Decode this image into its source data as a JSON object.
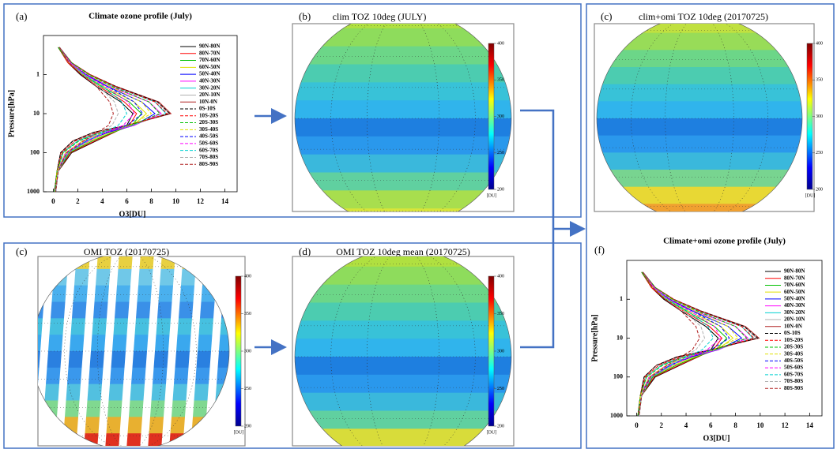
{
  "chart_data": [
    {
      "type": "line",
      "panel_label": "(a)",
      "title": "Climate ozone profile (July)",
      "x_label": "O3[DU]",
      "y_label": "Pressure[hPa]",
      "y": [
        0.2,
        0.5,
        1,
        2,
        5,
        10,
        20,
        30,
        50,
        100,
        300,
        1000
      ],
      "xlim": [
        -0.8,
        15
      ],
      "xticks": [
        0,
        2,
        4,
        6,
        8,
        10,
        12,
        14
      ],
      "ylim": [
        1000,
        0.1
      ],
      "yticks": [
        1,
        10,
        100,
        1000
      ],
      "y_scale": "log",
      "legend": "upper right",
      "series": [
        {
          "name": "90N-80N",
          "color": "#000000",
          "dashed": false,
          "values": [
            0.4,
            1.2,
            2.2,
            3.5,
            5.5,
            6.5,
            6,
            5,
            3.5,
            1.5,
            0.4,
            0.2
          ]
        },
        {
          "name": "80N-70N",
          "color": "#ff0000",
          "dashed": false,
          "values": [
            0.4,
            1.2,
            2.3,
            3.7,
            5.8,
            6.8,
            6.2,
            5,
            3.4,
            1.4,
            0.4,
            0.2
          ]
        },
        {
          "name": "70N-60N",
          "color": "#00c000",
          "dashed": false,
          "values": [
            0.4,
            1.3,
            2.4,
            3.9,
            6.2,
            7.2,
            6.4,
            4.9,
            3.2,
            1.3,
            0.4,
            0.2
          ]
        },
        {
          "name": "60N-50N",
          "color": "#e0e000",
          "dashed": false,
          "values": [
            0.5,
            1.3,
            2.5,
            4.1,
            6.6,
            7.6,
            6.5,
            4.7,
            3,
            1.2,
            0.4,
            0.2
          ]
        },
        {
          "name": "50N-40N",
          "color": "#0000ff",
          "dashed": false,
          "values": [
            0.5,
            1.4,
            2.6,
            4.4,
            7.2,
            8.3,
            6.6,
            4.5,
            2.7,
            1.1,
            0.3,
            0.2
          ]
        },
        {
          "name": "40N-30N",
          "color": "#ff00ff",
          "dashed": false,
          "values": [
            0.5,
            1.4,
            2.7,
            4.6,
            7.8,
            8.8,
            6.6,
            4.2,
            2.4,
            1,
            0.3,
            0.1
          ]
        },
        {
          "name": "30N-20N",
          "color": "#00d0d0",
          "dashed": false,
          "values": [
            0.5,
            1.5,
            2.9,
            4.9,
            8.3,
            9.2,
            6.4,
            3.8,
            2,
            0.8,
            0.3,
            0.1
          ]
        },
        {
          "name": "20N-10N",
          "color": "#b0b0b0",
          "dashed": false,
          "values": [
            0.5,
            1.5,
            3,
            5,
            8.5,
            9.5,
            6.2,
            3.5,
            1.8,
            0.7,
            0.3,
            0.1
          ]
        },
        {
          "name": "10N-0N",
          "color": "#b02020",
          "dashed": false,
          "values": [
            0.5,
            1.5,
            3,
            5.1,
            8.6,
            9.6,
            6,
            3.3,
            1.6,
            0.6,
            0.3,
            0.1
          ]
        },
        {
          "name": "0S-10S",
          "color": "#000000",
          "dashed": true,
          "values": [
            0.5,
            1.5,
            3,
            5.1,
            8.5,
            9.5,
            6,
            3.3,
            1.6,
            0.6,
            0.3,
            0.1
          ]
        },
        {
          "name": "10S-20S",
          "color": "#ff0000",
          "dashed": true,
          "values": [
            0.5,
            1.5,
            3,
            5,
            8.3,
            9.3,
            6.2,
            3.6,
            1.8,
            0.7,
            0.3,
            0.1
          ]
        },
        {
          "name": "20S-30S",
          "color": "#00c000",
          "dashed": true,
          "values": [
            0.5,
            1.5,
            2.9,
            4.8,
            7.8,
            8.7,
            6.3,
            4,
            2.1,
            0.8,
            0.3,
            0.1
          ]
        },
        {
          "name": "30S-40S",
          "color": "#e0e000",
          "dashed": true,
          "values": [
            0.5,
            1.4,
            2.8,
            4.6,
            7.2,
            8,
            6.2,
            4.2,
            2.4,
            1,
            0.3,
            0.2
          ]
        },
        {
          "name": "40S-50S",
          "color": "#0000ff",
          "dashed": true,
          "values": [
            0.5,
            1.4,
            2.7,
            4.4,
            6.6,
            7.3,
            6,
            4.3,
            2.7,
            1.1,
            0.4,
            0.2
          ]
        },
        {
          "name": "50S-60S",
          "color": "#ff00ff",
          "dashed": true,
          "values": [
            0.5,
            1.4,
            2.6,
            4.2,
            6.1,
            6.6,
            5.7,
            4.3,
            2.9,
            1.2,
            0.4,
            0.2
          ]
        },
        {
          "name": "60S-70S",
          "color": "#00d0d0",
          "dashed": true,
          "values": [
            0.5,
            1.3,
            2.5,
            4,
            5.6,
            6,
            5.3,
            4.1,
            2.8,
            1.2,
            0.4,
            0.2
          ]
        },
        {
          "name": "70S-80S",
          "color": "#b0b0b0",
          "dashed": true,
          "values": [
            0.5,
            1.3,
            2.4,
            3.7,
            5,
            5.3,
            4.8,
            3.8,
            2.6,
            1.1,
            0.4,
            0.2
          ]
        },
        {
          "name": "80S-90S",
          "color": "#b02020",
          "dashed": true,
          "values": [
            0.5,
            1.3,
            2.3,
            3.5,
            4.6,
            4.9,
            4.5,
            3.6,
            2.5,
            1.1,
            0.4,
            0.2
          ]
        }
      ]
    },
    {
      "type": "line",
      "panel_label": "(f)",
      "title": "Climate+omi ozone profile (July)",
      "x_label": "O3[DU]",
      "y_label": "Pressure[hPa]",
      "y": [
        0.2,
        0.5,
        1,
        2,
        5,
        10,
        20,
        30,
        50,
        100,
        300,
        1000
      ],
      "xlim": [
        -0.8,
        15
      ],
      "xticks": [
        0,
        2,
        4,
        6,
        8,
        10,
        12,
        14
      ],
      "ylim": [
        1000,
        0.1
      ],
      "yticks": [
        1,
        10,
        100,
        1000
      ],
      "y_scale": "log",
      "legend": "upper right",
      "series": [
        {
          "name": "90N-80N",
          "color": "#000000",
          "dashed": false,
          "values": [
            0.4,
            1.2,
            2.2,
            3.6,
            5.6,
            6.6,
            6,
            5,
            3.5,
            1.5,
            0.4,
            0.2
          ]
        },
        {
          "name": "80N-70N",
          "color": "#ff0000",
          "dashed": false,
          "values": [
            0.4,
            1.2,
            2.3,
            3.8,
            5.9,
            6.9,
            6.2,
            5,
            3.4,
            1.4,
            0.4,
            0.2
          ]
        },
        {
          "name": "70N-60N",
          "color": "#00c000",
          "dashed": false,
          "values": [
            0.4,
            1.3,
            2.4,
            4,
            6.3,
            7.3,
            6.4,
            4.9,
            3.2,
            1.3,
            0.4,
            0.2
          ]
        },
        {
          "name": "60N-50N",
          "color": "#e0e000",
          "dashed": false,
          "values": [
            0.5,
            1.3,
            2.5,
            4.2,
            6.8,
            7.8,
            6.5,
            4.7,
            3,
            1.2,
            0.4,
            0.2
          ]
        },
        {
          "name": "50N-40N",
          "color": "#0000ff",
          "dashed": false,
          "values": [
            0.5,
            1.4,
            2.6,
            4.5,
            7.4,
            8.5,
            6.6,
            4.5,
            2.7,
            1.1,
            0.3,
            0.2
          ]
        },
        {
          "name": "40N-30N",
          "color": "#ff00ff",
          "dashed": false,
          "values": [
            0.5,
            1.4,
            2.7,
            4.7,
            8,
            9,
            6.6,
            4.2,
            2.4,
            1,
            0.3,
            0.1
          ]
        },
        {
          "name": "30N-20N",
          "color": "#00d0d0",
          "dashed": false,
          "values": [
            0.5,
            1.5,
            2.9,
            5,
            8.5,
            9.4,
            6.4,
            3.8,
            2,
            0.8,
            0.3,
            0.1
          ]
        },
        {
          "name": "20N-10N",
          "color": "#b0b0b0",
          "dashed": false,
          "values": [
            0.5,
            1.5,
            3,
            5.1,
            8.7,
            9.7,
            6.2,
            3.5,
            1.8,
            0.7,
            0.3,
            0.1
          ]
        },
        {
          "name": "10N-0N",
          "color": "#b02020",
          "dashed": false,
          "values": [
            0.5,
            1.5,
            3,
            5.2,
            8.8,
            9.9,
            6,
            3.3,
            1.6,
            0.6,
            0.3,
            0.1
          ]
        },
        {
          "name": "0S-10S",
          "color": "#000000",
          "dashed": true,
          "values": [
            0.5,
            1.5,
            3,
            5.2,
            8.7,
            9.8,
            6,
            3.3,
            1.6,
            0.6,
            0.3,
            0.1
          ]
        },
        {
          "name": "10S-20S",
          "color": "#ff0000",
          "dashed": true,
          "values": [
            0.5,
            1.5,
            3,
            5.1,
            8.5,
            9.5,
            6.2,
            3.6,
            1.8,
            0.7,
            0.3,
            0.1
          ]
        },
        {
          "name": "20S-30S",
          "color": "#00c000",
          "dashed": true,
          "values": [
            0.5,
            1.5,
            2.9,
            4.9,
            8,
            8.9,
            6.3,
            4,
            2.1,
            0.8,
            0.3,
            0.1
          ]
        },
        {
          "name": "30S-40S",
          "color": "#e0e000",
          "dashed": true,
          "values": [
            0.5,
            1.4,
            2.8,
            4.7,
            7.4,
            8.2,
            6.2,
            4.2,
            2.4,
            1,
            0.3,
            0.2
          ]
        },
        {
          "name": "40S-50S",
          "color": "#0000ff",
          "dashed": true,
          "values": [
            0.5,
            1.4,
            2.7,
            4.5,
            6.8,
            7.5,
            6,
            4.3,
            2.7,
            1.1,
            0.4,
            0.2
          ]
        },
        {
          "name": "50S-60S",
          "color": "#ff00ff",
          "dashed": true,
          "values": [
            0.5,
            1.4,
            2.6,
            4.3,
            6.3,
            6.8,
            5.7,
            4.3,
            2.9,
            1.2,
            0.4,
            0.2
          ]
        },
        {
          "name": "60S-70S",
          "color": "#00d0d0",
          "dashed": true,
          "values": [
            0.5,
            1.3,
            2.5,
            4.1,
            5.8,
            6.2,
            5.3,
            4.1,
            2.8,
            1.2,
            0.4,
            0.2
          ]
        },
        {
          "name": "70S-80S",
          "color": "#b0b0b0",
          "dashed": true,
          "values": [
            0.5,
            1.3,
            2.4,
            3.8,
            5.2,
            5.5,
            4.8,
            3.8,
            2.6,
            1.1,
            0.4,
            0.2
          ]
        },
        {
          "name": "80S-90S",
          "color": "#b02020",
          "dashed": true,
          "values": [
            0.5,
            1.3,
            2.3,
            3.6,
            4.8,
            5.1,
            4.5,
            3.6,
            2.5,
            1.1,
            0.4,
            0.2
          ]
        }
      ]
    }
  ],
  "maps": [
    {
      "panel_label": "(b)",
      "title": "clim TOZ 10deg (JULY)",
      "colorbar_lim": [
        200,
        400
      ],
      "colorbar_ticks": [
        200,
        250,
        300,
        350,
        400
      ],
      "colorbar_label": "[DU]"
    },
    {
      "panel_label": "(c)",
      "title": "clim+omi TOZ 10deg (20170725)",
      "colorbar_lim": [
        200,
        400
      ],
      "colorbar_ticks": [
        200,
        250,
        300,
        350,
        400
      ],
      "colorbar_label": "[DU]"
    },
    {
      "panel_label": "(c)",
      "title": "OMI TOZ (20170725)",
      "colorbar_lim": [
        200,
        400
      ],
      "colorbar_ticks": [
        200,
        250,
        300,
        350,
        400
      ],
      "colorbar_label": "[DU]"
    },
    {
      "panel_label": "(d)",
      "title": "OMI TOZ 10deg mean (20170725)",
      "colorbar_lim": [
        200,
        400
      ],
      "colorbar_ticks": [
        200,
        250,
        300,
        350,
        400
      ],
      "colorbar_label": "[DU]"
    }
  ]
}
